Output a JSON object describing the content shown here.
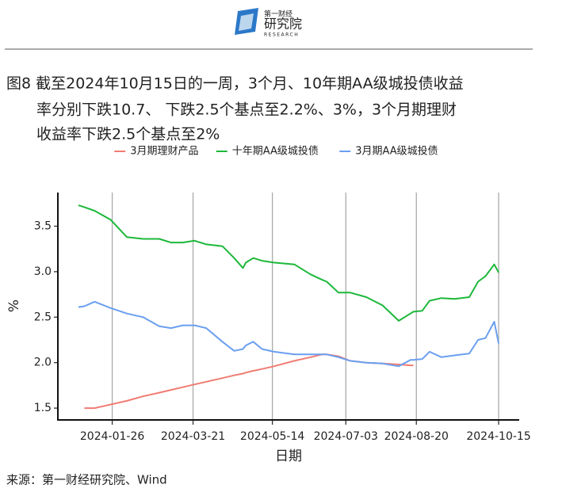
{
  "header": {
    "brand": "第一财经",
    "name": "研究院",
    "sub": "RESEARCH"
  },
  "figure_title": [
    "图8  截至2024年10月15日的一周，3个月、10年期AA级城投债收益",
    "率分别下跌10.7、 下跌2.5个基点至2.2%、3%，3个月期理财",
    "收益率下跌2.5个基点至2%"
  ],
  "chart_data": {
    "type": "line",
    "x_label": "日期",
    "y_label": "%",
    "x": [
      "2024-01-03",
      "2024-01-07",
      "2024-01-14",
      "2024-01-25",
      "2024-02-05",
      "2024-02-16",
      "2024-02-27",
      "2024-03-06",
      "2024-03-14",
      "2024-03-22",
      "2024-03-30",
      "2024-04-10",
      "2024-04-18",
      "2024-04-24",
      "2024-04-26",
      "2024-05-01",
      "2024-05-07",
      "2024-05-15",
      "2024-05-29",
      "2024-06-09",
      "2024-06-17",
      "2024-06-20",
      "2024-06-28",
      "2024-07-06",
      "2024-07-17",
      "2024-07-28",
      "2024-08-08",
      "2024-08-16",
      "2024-08-18",
      "2024-08-24",
      "2024-08-29",
      "2024-09-06",
      "2024-09-15",
      "2024-09-25",
      "2024-10-01",
      "2024-10-06",
      "2024-10-12",
      "2024-10-15"
    ],
    "series": [
      {
        "name": "3月期理财产品",
        "color": "#f07c73",
        "values": [
          null,
          1.5,
          1.5,
          1.54,
          1.58,
          1.63,
          1.67,
          1.7,
          1.73,
          1.76,
          1.79,
          1.83,
          1.86,
          1.88,
          1.89,
          1.91,
          1.93,
          1.96,
          2.02,
          2.06,
          2.09,
          2.09,
          2.07,
          2.02,
          2.0,
          1.99,
          1.98,
          1.97,
          1.97,
          null,
          null,
          null,
          null,
          null,
          null,
          null,
          null,
          null
        ]
      },
      {
        "name": "十年期AA级城投债",
        "color": "#1db83a",
        "values": [
          3.73,
          3.71,
          3.67,
          3.57,
          3.38,
          3.36,
          3.36,
          3.32,
          3.32,
          3.34,
          3.3,
          3.28,
          3.15,
          3.04,
          3.1,
          3.15,
          3.12,
          3.1,
          3.08,
          2.97,
          2.91,
          2.89,
          2.77,
          2.77,
          2.72,
          2.63,
          2.46,
          2.54,
          2.56,
          2.57,
          2.68,
          2.71,
          2.7,
          2.72,
          2.89,
          2.95,
          3.08,
          2.99
        ]
      },
      {
        "name": "3月期AA级城投债",
        "color": "#6a9ff0",
        "values": [
          2.61,
          2.62,
          2.67,
          2.6,
          2.54,
          2.5,
          2.4,
          2.38,
          2.41,
          2.41,
          2.38,
          2.23,
          2.13,
          2.15,
          2.19,
          2.23,
          2.15,
          2.12,
          2.09,
          2.09,
          2.09,
          2.09,
          2.06,
          2.02,
          2.0,
          1.99,
          1.96,
          2.03,
          2.03,
          2.04,
          2.12,
          2.06,
          2.08,
          2.1,
          2.25,
          2.27,
          2.45,
          2.21
        ]
      }
    ],
    "xlim": [
      "2023-12-20",
      "2024-10-29"
    ],
    "xticks": [
      "2024-01-26",
      "2024-03-21",
      "2024-05-14",
      "2024-07-03",
      "2024-08-20",
      "2024-10-15"
    ],
    "ylim": [
      1.37,
      3.87
    ],
    "yticks": [
      1.5,
      {
        "value": 2,
        "label": "2.0"
      },
      2.5,
      {
        "value": 3,
        "label": "3.0"
      },
      3.5
    ],
    "grid": "x",
    "legend": "top"
  },
  "source": "来源：第一财经研究院、Wind"
}
